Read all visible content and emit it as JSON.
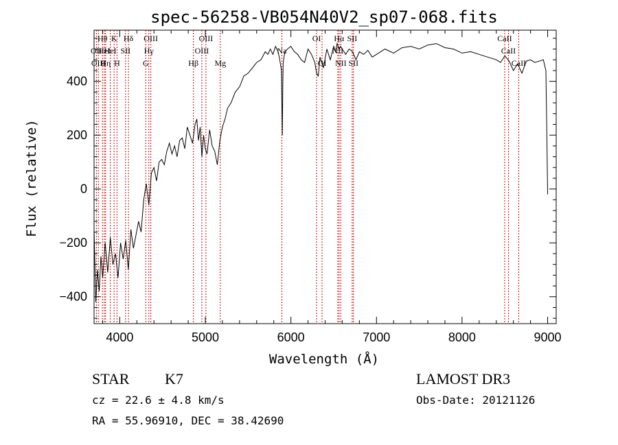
{
  "chart_data": {
    "type": "line",
    "title": "spec-56258-VB054N40V2_sp07-068.fits",
    "xlabel": "Wavelength (Å)",
    "ylabel": "Flux (relative)",
    "xlim": [
      3700,
      9100
    ],
    "ylim": [
      -500,
      590
    ],
    "xticks": [
      4000,
      5000,
      6000,
      7000,
      8000,
      9000
    ],
    "yticks": [
      -400,
      -200,
      0,
      200,
      400
    ],
    "xtick_labels": [
      "4000",
      "5000",
      "6000",
      "7000",
      "8000",
      "9000"
    ],
    "ytick_labels": [
      "−400",
      "−200",
      "0",
      "200",
      "400"
    ],
    "series": [
      {
        "name": "flux",
        "x": [
          3700,
          3720,
          3740,
          3760,
          3780,
          3800,
          3830,
          3860,
          3890,
          3920,
          3950,
          3980,
          4010,
          4040,
          4070,
          4100,
          4130,
          4160,
          4190,
          4220,
          4250,
          4280,
          4310,
          4340,
          4370,
          4400,
          4430,
          4460,
          4490,
          4520,
          4550,
          4580,
          4610,
          4640,
          4670,
          4700,
          4730,
          4760,
          4790,
          4820,
          4850,
          4880,
          4900,
          4920,
          4940,
          4960,
          4980,
          5000,
          5020,
          5050,
          5080,
          5110,
          5140,
          5170,
          5200,
          5230,
          5260,
          5300,
          5350,
          5400,
          5450,
          5500,
          5550,
          5600,
          5650,
          5700,
          5730,
          5760,
          5790,
          5820,
          5850,
          5870,
          5890,
          5895,
          5900,
          5905,
          5910,
          5930,
          5960,
          6000,
          6040,
          6080,
          6120,
          6160,
          6200,
          6240,
          6280,
          6300,
          6320,
          6340,
          6380,
          6420,
          6460,
          6500,
          6520,
          6540,
          6562,
          6580,
          6600,
          6640,
          6680,
          6720,
          6760,
          6800,
          6850,
          6900,
          6950,
          7000,
          7100,
          7200,
          7300,
          7400,
          7500,
          7600,
          7700,
          7800,
          7900,
          8000,
          8100,
          8200,
          8300,
          8400,
          8450,
          8500,
          8550,
          8600,
          8650,
          8700,
          8750,
          8800,
          8850,
          8900,
          8950,
          8980,
          8990,
          9000
        ],
        "values": [
          -150,
          -420,
          -300,
          -380,
          -250,
          -330,
          -200,
          -310,
          -180,
          -280,
          -240,
          -330,
          -200,
          -260,
          -190,
          -300,
          -150,
          -220,
          -170,
          -120,
          -160,
          -40,
          20,
          -60,
          60,
          80,
          30,
          100,
          110,
          90,
          140,
          170,
          130,
          160,
          120,
          180,
          190,
          150,
          230,
          200,
          170,
          240,
          260,
          180,
          230,
          120,
          200,
          150,
          130,
          220,
          160,
          140,
          90,
          180,
          230,
          260,
          300,
          320,
          360,
          380,
          420,
          430,
          450,
          470,
          480,
          510,
          500,
          520,
          500,
          530,
          510,
          480,
          440,
          300,
          200,
          380,
          470,
          510,
          520,
          530,
          510,
          500,
          480,
          470,
          520,
          500,
          470,
          430,
          420,
          490,
          450,
          520,
          480,
          530,
          510,
          540,
          520,
          530,
          520,
          500,
          520,
          510,
          480,
          510,
          500,
          515,
          490,
          500,
          520,
          505,
          525,
          530,
          520,
          535,
          540,
          525,
          520,
          505,
          510,
          500,
          490,
          480,
          470,
          495,
          475,
          440,
          465,
          430,
          475,
          480,
          470,
          475,
          480,
          440,
          220,
          -20
        ]
      }
    ],
    "line_markers": [
      {
        "wavelength": 3727,
        "label": "OII",
        "row": 1
      },
      {
        "wavelength": 3750,
        "label": "OIII",
        "row": 2
      },
      {
        "wavelength": 3798,
        "label": "Hθ",
        "row": 0
      },
      {
        "wavelength": 3820,
        "label": "HeI",
        "row": 1
      },
      {
        "wavelength": 3835,
        "label": "Hη",
        "row": 2
      },
      {
        "wavelength": 3889,
        "label": "HeI",
        "row": 1
      },
      {
        "wavelength": 3934,
        "label": "K",
        "row": 0
      },
      {
        "wavelength": 3968,
        "label": "H",
        "row": 2
      },
      {
        "wavelength": 4068,
        "label": "SII",
        "row": 1
      },
      {
        "wavelength": 4102,
        "label": "Hδ",
        "row": 0
      },
      {
        "wavelength": 4304,
        "label": "G",
        "row": 2
      },
      {
        "wavelength": 4340,
        "label": "Hγ",
        "row": 1
      },
      {
        "wavelength": 4363,
        "label": "OIII",
        "row": 0
      },
      {
        "wavelength": 4861,
        "label": "Hβ",
        "row": 2
      },
      {
        "wavelength": 4959,
        "label": "OIII",
        "row": 1
      },
      {
        "wavelength": 5007,
        "label": "OIII",
        "row": 0
      },
      {
        "wavelength": 5175,
        "label": "Mg",
        "row": 2
      },
      {
        "wavelength": 5894,
        "label": "Na",
        "row": 1
      },
      {
        "wavelength": 6300,
        "label": "OI",
        "row": 0
      },
      {
        "wavelength": 6364,
        "label": "OI",
        "row": 2
      },
      {
        "wavelength": 6548,
        "label": "NII",
        "row": 1
      },
      {
        "wavelength": 6563,
        "label": "Hα",
        "row": 0
      },
      {
        "wavelength": 6583,
        "label": "NII",
        "row": 2
      },
      {
        "wavelength": 6716,
        "label": "SII",
        "row": 0
      },
      {
        "wavelength": 6731,
        "label": "SII",
        "row": 2
      },
      {
        "wavelength": 8498,
        "label": "CaII",
        "row": 0
      },
      {
        "wavelength": 8542,
        "label": "CaII",
        "row": 1
      },
      {
        "wavelength": 8662,
        "label": "CaII",
        "row": 2
      }
    ]
  },
  "info": {
    "object_class": "STAR",
    "subclass": "K7",
    "survey": "LAMOST DR3",
    "cz": "cz = 22.6 ± 4.8 km/s",
    "obs_date": "Obs-Date: 20121126",
    "coords": "RA =  55.96910, DEC =  38.42690"
  },
  "colors": {
    "line_marker": "#cc0000",
    "spectrum": "#000000",
    "axes": "#000000"
  }
}
